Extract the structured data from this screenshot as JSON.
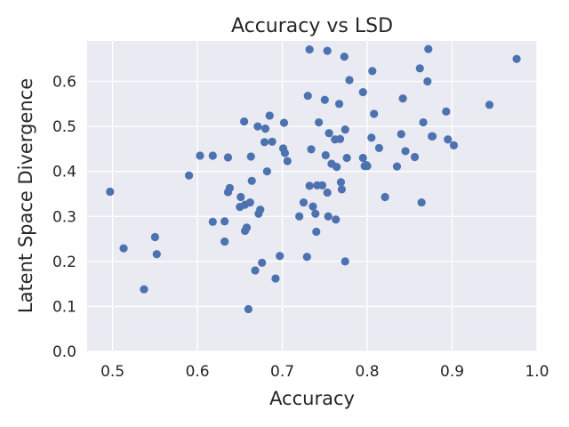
{
  "chart_data": {
    "type": "scatter",
    "title": "Accuracy vs LSD",
    "xlabel": "Accuracy",
    "ylabel": "Latent Space Divergence",
    "xlim": [
      0.47,
      1.0
    ],
    "ylim": [
      0.0,
      0.69
    ],
    "xticks": [
      "0.5",
      "0.6",
      "0.7",
      "0.8",
      "0.9",
      "1.0"
    ],
    "xtick_values": [
      0.5,
      0.6,
      0.7,
      0.8,
      0.9,
      1.0
    ],
    "yticks": [
      "0.0",
      "0.1",
      "0.2",
      "0.3",
      "0.4",
      "0.5",
      "0.6"
    ],
    "ytick_values": [
      0.0,
      0.1,
      0.2,
      0.3,
      0.4,
      0.5,
      0.6
    ],
    "grid": true,
    "background": "#eaeaf2",
    "marker_color": "#4c72b0",
    "points": [
      [
        0.497,
        0.355
      ],
      [
        0.513,
        0.229
      ],
      [
        0.537,
        0.138
      ],
      [
        0.55,
        0.254
      ],
      [
        0.552,
        0.216
      ],
      [
        0.59,
        0.391
      ],
      [
        0.603,
        0.435
      ],
      [
        0.618,
        0.435
      ],
      [
        0.618,
        0.288
      ],
      [
        0.632,
        0.289
      ],
      [
        0.632,
        0.244
      ],
      [
        0.636,
        0.431
      ],
      [
        0.636,
        0.354
      ],
      [
        0.638,
        0.363
      ],
      [
        0.65,
        0.321
      ],
      [
        0.651,
        0.343
      ],
      [
        0.655,
        0.511
      ],
      [
        0.656,
        0.326
      ],
      [
        0.656,
        0.268
      ],
      [
        0.658,
        0.275
      ],
      [
        0.66,
        0.094
      ],
      [
        0.662,
        0.331
      ],
      [
        0.663,
        0.433
      ],
      [
        0.664,
        0.379
      ],
      [
        0.668,
        0.18
      ],
      [
        0.671,
        0.5
      ],
      [
        0.672,
        0.306
      ],
      [
        0.674,
        0.315
      ],
      [
        0.676,
        0.197
      ],
      [
        0.679,
        0.465
      ],
      [
        0.68,
        0.495
      ],
      [
        0.682,
        0.4
      ],
      [
        0.685,
        0.524
      ],
      [
        0.688,
        0.466
      ],
      [
        0.692,
        0.162
      ],
      [
        0.697,
        0.212
      ],
      [
        0.701,
        0.451
      ],
      [
        0.702,
        0.508
      ],
      [
        0.703,
        0.441
      ],
      [
        0.706,
        0.423
      ],
      [
        0.72,
        0.3
      ],
      [
        0.725,
        0.331
      ],
      [
        0.729,
        0.21
      ],
      [
        0.73,
        0.568
      ],
      [
        0.732,
        0.671
      ],
      [
        0.732,
        0.368
      ],
      [
        0.734,
        0.449
      ],
      [
        0.736,
        0.322
      ],
      [
        0.739,
        0.306
      ],
      [
        0.74,
        0.266
      ],
      [
        0.741,
        0.369
      ],
      [
        0.743,
        0.509
      ],
      [
        0.747,
        0.369
      ],
      [
        0.75,
        0.559
      ],
      [
        0.751,
        0.436
      ],
      [
        0.753,
        0.668
      ],
      [
        0.753,
        0.353
      ],
      [
        0.754,
        0.3
      ],
      [
        0.755,
        0.485
      ],
      [
        0.758,
        0.417
      ],
      [
        0.762,
        0.471
      ],
      [
        0.763,
        0.293
      ],
      [
        0.764,
        0.41
      ],
      [
        0.767,
        0.55
      ],
      [
        0.768,
        0.472
      ],
      [
        0.769,
        0.376
      ],
      [
        0.77,
        0.36
      ],
      [
        0.773,
        0.655
      ],
      [
        0.774,
        0.493
      ],
      [
        0.774,
        0.2
      ],
      [
        0.776,
        0.43
      ],
      [
        0.779,
        0.603
      ],
      [
        0.795,
        0.576
      ],
      [
        0.795,
        0.43
      ],
      [
        0.797,
        0.412
      ],
      [
        0.799,
        0.414
      ],
      [
        0.8,
        0.412
      ],
      [
        0.805,
        0.475
      ],
      [
        0.806,
        0.623
      ],
      [
        0.808,
        0.528
      ],
      [
        0.814,
        0.452
      ],
      [
        0.821,
        0.343
      ],
      [
        0.835,
        0.411
      ],
      [
        0.84,
        0.483
      ],
      [
        0.842,
        0.562
      ],
      [
        0.845,
        0.445
      ],
      [
        0.856,
        0.432
      ],
      [
        0.862,
        0.629
      ],
      [
        0.864,
        0.331
      ],
      [
        0.866,
        0.509
      ],
      [
        0.871,
        0.6
      ],
      [
        0.872,
        0.672
      ],
      [
        0.876,
        0.478
      ],
      [
        0.877,
        0.478
      ],
      [
        0.893,
        0.533
      ],
      [
        0.895,
        0.471
      ],
      [
        0.902,
        0.458
      ],
      [
        0.944,
        0.548
      ],
      [
        0.976,
        0.65
      ]
    ]
  }
}
